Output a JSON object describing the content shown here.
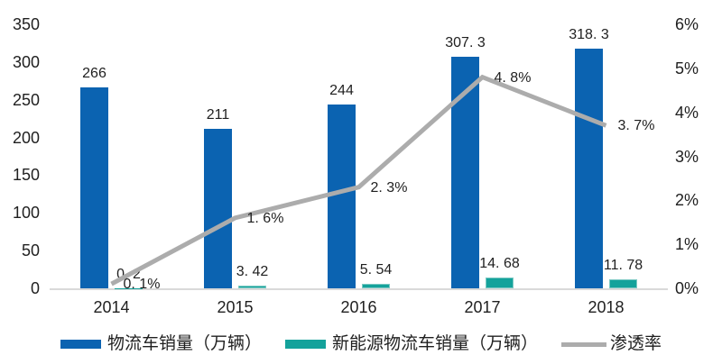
{
  "chart_data": {
    "type": "bar",
    "combo": "bar+line",
    "title": "",
    "categories": [
      "2014",
      "2015",
      "2016",
      "2017",
      "2018"
    ],
    "series": [
      {
        "name": "物流车销量（万辆）",
        "type": "bar",
        "axis": "left",
        "color": "#0b63b1",
        "values": [
          266,
          211,
          244,
          307.3,
          318.3
        ],
        "labels": [
          "266",
          "211",
          "244",
          "307. 3",
          "318. 3"
        ]
      },
      {
        "name": "新能源物流车销量（万辆）",
        "type": "bar",
        "axis": "left",
        "color": "#14a29b",
        "border_color": "#7bc9c3",
        "values": [
          0.2,
          3.42,
          5.54,
          14.68,
          11.78
        ],
        "labels": [
          "0. 2",
          "3. 42",
          "5. 54",
          "14. 68",
          "11. 78"
        ]
      },
      {
        "name": "渗透率",
        "type": "line",
        "axis": "right",
        "color": "#acacac",
        "values": [
          0.1,
          1.6,
          2.3,
          4.8,
          3.7
        ],
        "labels": [
          "0. 1%",
          "1. 6%",
          "2. 3%",
          "4. 8%",
          "3. 7%"
        ]
      }
    ],
    "left_axis": {
      "min": 0,
      "max": 350,
      "step": 50,
      "ticks": [
        "0",
        "50",
        "100",
        "150",
        "200",
        "250",
        "300",
        "350"
      ]
    },
    "right_axis": {
      "min": 0,
      "max": 6,
      "step": 1,
      "ticks": [
        "0%",
        "1%",
        "2%",
        "3%",
        "4%",
        "5%",
        "6%"
      ]
    },
    "grid": false,
    "legend_position": "bottom",
    "background": "#ffffff",
    "baseline_color": "#d9d9d9",
    "text_color": "#1f1f1f"
  }
}
